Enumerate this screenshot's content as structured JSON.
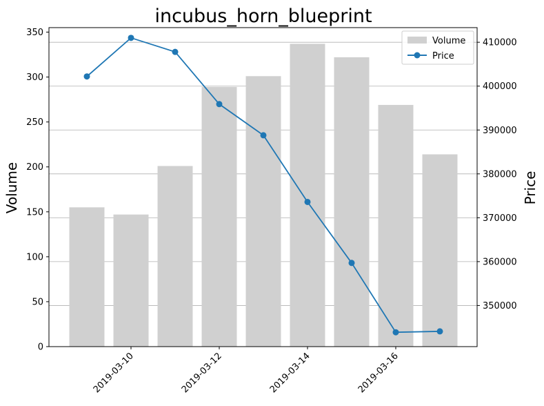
{
  "chart_data": {
    "type": "bar+line",
    "title": "incubus_horn_blueprint",
    "x_dates": [
      "2019-03-09",
      "2019-03-10",
      "2019-03-11",
      "2019-03-12",
      "2019-03-13",
      "2019-03-14",
      "2019-03-15",
      "2019-03-16",
      "2019-03-17"
    ],
    "x_tick_labels": [
      "2019-03-10",
      "2019-03-12",
      "2019-03-14",
      "2019-03-16"
    ],
    "series": [
      {
        "name": "Volume",
        "kind": "bar",
        "axis": "left",
        "color": "#d0d0d0",
        "values": [
          155,
          147,
          201,
          289,
          301,
          337,
          322,
          269,
          214
        ]
      },
      {
        "name": "Price",
        "kind": "line",
        "axis": "right",
        "color": "#1f77b4",
        "values": [
          402200,
          411000,
          407800,
          395900,
          388800,
          373600,
          359700,
          343900,
          344100
        ]
      }
    ],
    "left_axis": {
      "label": "Volume",
      "ylim": [
        0,
        355
      ],
      "ticks": [
        0,
        50,
        100,
        150,
        200,
        250,
        300,
        350
      ]
    },
    "right_axis": {
      "label": "Price",
      "ylim": [
        340625,
        413333
      ],
      "ticks": [
        350000,
        360000,
        370000,
        380000,
        390000,
        400000,
        410000
      ]
    },
    "grid": "horizontal-right-axis",
    "legend_position": "top-right"
  }
}
